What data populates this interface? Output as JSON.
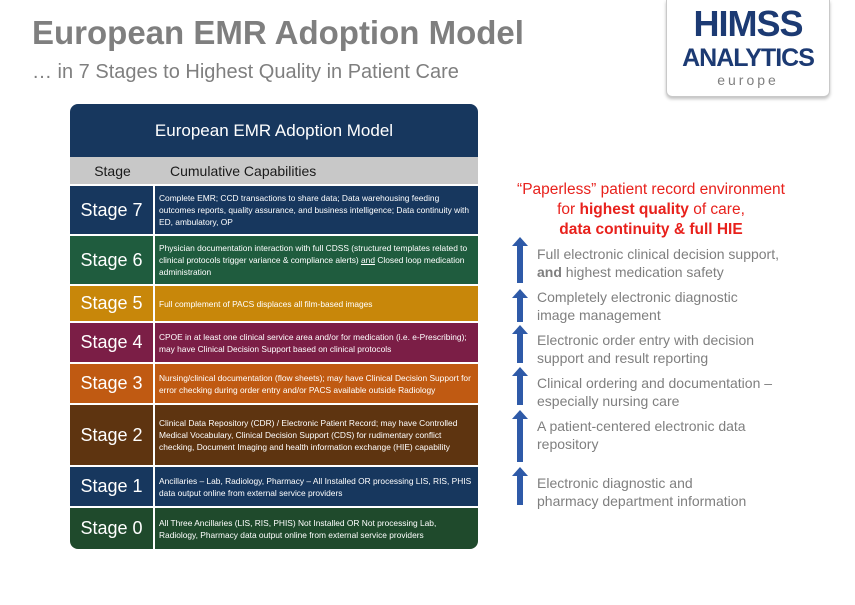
{
  "header": {
    "title": "European EMR Adoption Model",
    "subtitle": "… in 7 Stages to Highest Quality in Patient Care"
  },
  "logo": {
    "line1": "HIMSS",
    "line2": "ANALYTICS",
    "line3": "europe"
  },
  "table": {
    "title": "European EMR Adoption Model",
    "col_stage": "Stage",
    "col_capabilities": "Cumulative Capabilities",
    "rows": [
      {
        "stage": "Stage 7",
        "color": "#17375e",
        "capabilities": "Complete EMR; CCD transactions to share data; Data warehousing feeding outcomes reports, quality assurance, and business intelligence; Data continuity with ED, ambulatory, OP"
      },
      {
        "stage": "Stage 6",
        "color": "#1f5c3e",
        "capabilities_pre": "Physician documentation interaction with full CDSS (structured templates related to clinical protocols trigger variance & compliance alerts) ",
        "capabilities_underline": "and",
        "capabilities_post": " Closed loop medication administration"
      },
      {
        "stage": "Stage 5",
        "color": "#c8870a",
        "capabilities": "Full complement of PACS displaces all film-based images"
      },
      {
        "stage": "Stage 4",
        "color": "#7b1e46",
        "capabilities": "CPOE in at least one clinical service area and/or for medication (i.e. e-Prescribing); may have Clinical Decision Support  based on clinical protocols"
      },
      {
        "stage": "Stage 3",
        "color": "#c05a12",
        "capabilities": "Nursing/clinical documentation (flow sheets); may have Clinical Decision Support for error checking during order entry and/or PACS available outside Radiology"
      },
      {
        "stage": "Stage 2",
        "color": "#5e3410",
        "capabilities": "Clinical Data Repository (CDR) / Electronic Patient Record; may have Controlled Medical Vocabulary, Clinical Decision Support (CDS) for rudimentary conflict checking, Document Imaging and health information exchange (HIE) capability"
      },
      {
        "stage": "Stage 1",
        "color": "#17375e",
        "capabilities": "Ancillaries – Lab, Radiology, Pharmacy – All Installed OR processing LIS, RIS, PHIS data output online from external service providers"
      },
      {
        "stage": "Stage 0",
        "color": "#1f4a2c",
        "capabilities": "All Three Ancillaries (LIS, RIS, PHIS) Not Installed  OR Not processing Lab, Radiology, Pharmacy data output online from external service providers"
      }
    ]
  },
  "side": {
    "line1": "“Paperless” patient record environment",
    "line2_pre": "for ",
    "line2_bold": "highest quality",
    "line2_post": " of care,",
    "line3": "data continuity & full HIE",
    "items": [
      {
        "pre": "Full electronic clinical decision support, ",
        "bold": "and",
        "post": " highest medication safety"
      },
      {
        "pre": "Completely electronic diagnostic image management",
        "bold": "",
        "post": ""
      },
      {
        "pre": "Electronic order entry with decision support and result reporting",
        "bold": "",
        "post": ""
      },
      {
        "pre": "Clinical ordering and documentation – especially nursing care",
        "bold": "",
        "post": ""
      },
      {
        "pre": "A patient-centered electronic data repository",
        "bold": "",
        "post": ""
      },
      {
        "pre": "Electronic diagnostic and pharmacy department information",
        "bold": "",
        "post": ""
      }
    ],
    "arrow_color": "#2e5aa8"
  }
}
